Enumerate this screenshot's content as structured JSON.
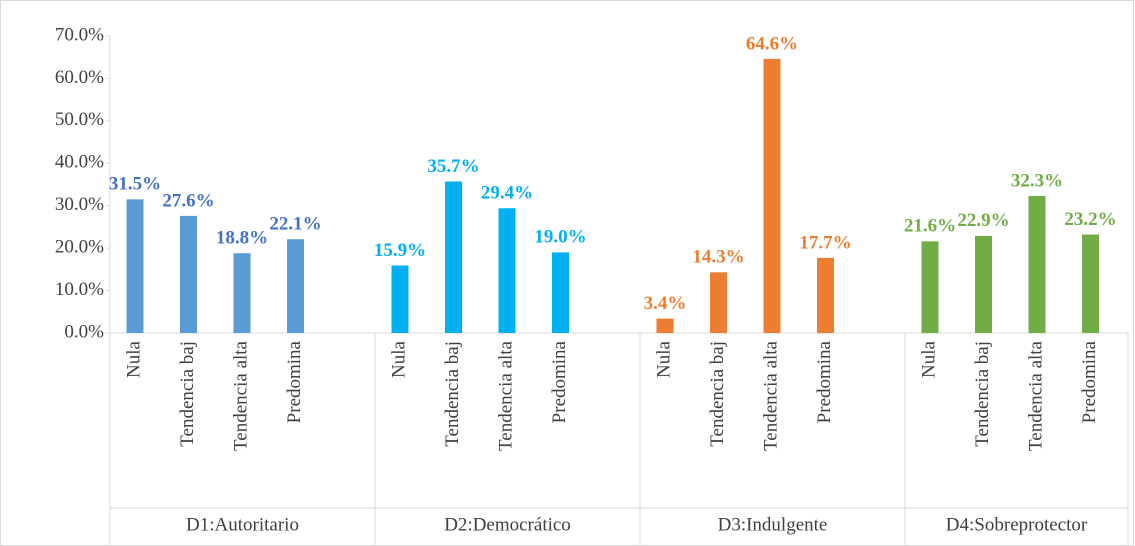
{
  "chart_data": {
    "type": "bar",
    "ylim": [
      0,
      70
    ],
    "yticks": [
      {
        "value": 0,
        "label": "0.0%"
      },
      {
        "value": 10,
        "label": "10.0%"
      },
      {
        "value": 20,
        "label": "20.0%"
      },
      {
        "value": 30,
        "label": "30.0%"
      },
      {
        "value": 40,
        "label": "40.0%"
      },
      {
        "value": 50,
        "label": "50.0%"
      },
      {
        "value": 60,
        "label": "60.0%"
      },
      {
        "value": 70,
        "label": "70.0%"
      }
    ],
    "grid": false,
    "series": [
      {
        "name": "D1:Autoritario",
        "color": "#5b9bd5",
        "label_color": "#4472c4",
        "categories": [
          "Nula",
          "Tendencia baj",
          "Tendencia alta",
          "Predomina"
        ],
        "values": [
          31.5,
          27.6,
          18.8,
          22.1
        ],
        "value_labels": [
          "31.5%",
          "27.6%",
          "18.8%",
          "22.1%"
        ]
      },
      {
        "name": "D2:Democrático",
        "color": "#00b0f0",
        "label_color": "#00b0f0",
        "categories": [
          "Nula",
          "Tendencia baj",
          "Tendencia alta",
          "Predomina"
        ],
        "values": [
          15.9,
          35.7,
          29.4,
          19.0
        ],
        "value_labels": [
          "15.9%",
          "35.7%",
          "29.4%",
          "19.0%"
        ]
      },
      {
        "name": "D3:Indulgente",
        "color": "#ed7d31",
        "label_color": "#ed7d31",
        "categories": [
          "Nula",
          "Tendencia baj",
          "Tendencia alta",
          "Predomina"
        ],
        "values": [
          3.4,
          14.3,
          64.6,
          17.7
        ],
        "value_labels": [
          "3.4%",
          "14.3%",
          "64.6%",
          "17.7%"
        ]
      },
      {
        "name": "D4:Sobreprotector",
        "color": "#70ad47",
        "label_color": "#70ad47",
        "categories": [
          "Nula",
          "Tendencia baj",
          "Tendencia alta",
          "Predomina"
        ],
        "values": [
          21.6,
          22.9,
          32.3,
          23.2
        ],
        "value_labels": [
          "21.6%",
          "22.9%",
          "32.3%",
          "23.2%"
        ]
      }
    ]
  }
}
